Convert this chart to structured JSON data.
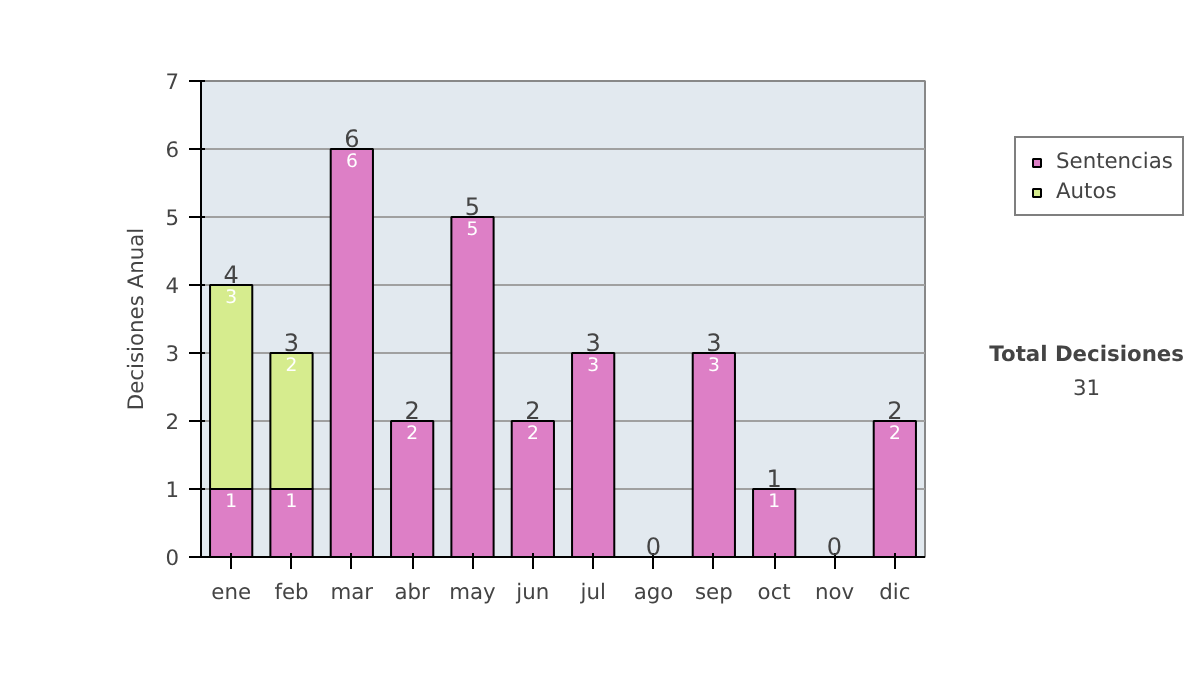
{
  "chart_data": {
    "type": "bar",
    "stacked": true,
    "ylabel": "Decisiones Anual",
    "categories": [
      "ene",
      "feb",
      "mar",
      "abr",
      "may",
      "jun",
      "jul",
      "ago",
      "sep",
      "oct",
      "nov",
      "dic"
    ],
    "series": [
      {
        "name": "Sentencias",
        "color": "#dd7fc6",
        "values": [
          1,
          1,
          6,
          2,
          5,
          2,
          3,
          0,
          3,
          1,
          0,
          2
        ],
        "value_labels": [
          "1",
          "1",
          "6",
          "2",
          "5",
          "2",
          "3",
          null,
          "3",
          "1",
          null,
          "2"
        ]
      },
      {
        "name": "Autos",
        "color": "#d6ec8e",
        "values": [
          3,
          2,
          0,
          0,
          0,
          0,
          0,
          0,
          0,
          0,
          0,
          0
        ],
        "value_labels": [
          "3",
          "2",
          null,
          null,
          null,
          null,
          null,
          null,
          null,
          null,
          null,
          null
        ]
      }
    ],
    "totals": [
      "4",
      "3",
      "6",
      "2",
      "5",
      "2",
      "3",
      "0",
      "3",
      "1",
      "0",
      "2"
    ],
    "ylim": [
      0,
      7
    ],
    "yticks": [
      0,
      1,
      2,
      3,
      4,
      5,
      6,
      7
    ],
    "grid": "y",
    "legend": "right",
    "annotations": [
      "Total Decisiones",
      "31"
    ]
  }
}
